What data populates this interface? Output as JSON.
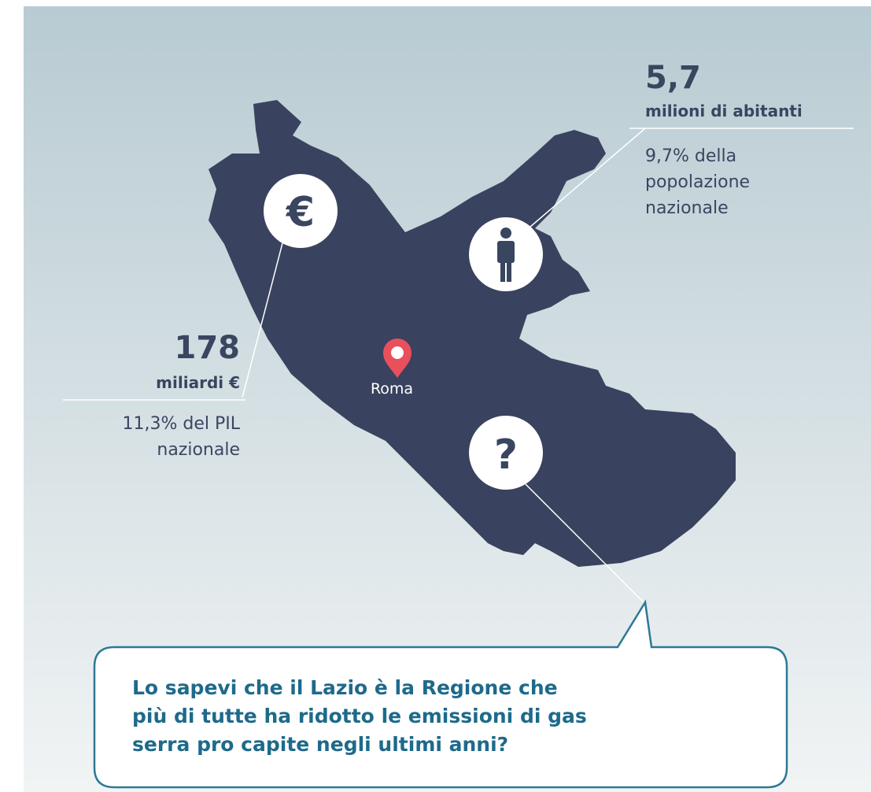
{
  "population": {
    "value": "5,7",
    "unit": "milioni di abitanti",
    "note": [
      "9,7% della",
      "popolazione",
      "nazionale"
    ]
  },
  "gdp": {
    "value": "178",
    "unit": "miliardi €",
    "note": [
      "11,3% del PIL",
      "nazionale"
    ]
  },
  "icons": {
    "gdp": "€",
    "fact": "?"
  },
  "city": "Roma",
  "callout": [
    "Lo sapevi che il Lazio è la Regione che",
    "più di tutte ha ridotto le emissioni di gas",
    "serra pro capite negli ultimi anni?"
  ]
}
